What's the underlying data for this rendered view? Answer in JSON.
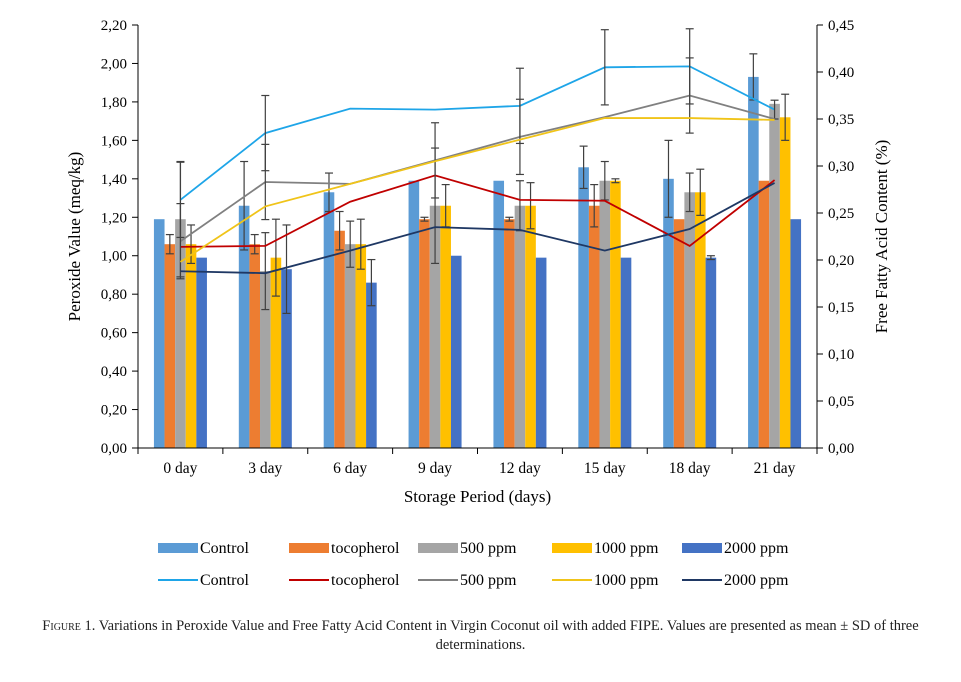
{
  "caption": {
    "label": "Figure 1.",
    "text": "Variations in Peroxide Value and Free Fatty Acid Content in Virgin Coconut oil with added FIPE. Values are presented as mean ± SD of three determinations."
  },
  "chart_data": {
    "type": "bar",
    "categories": [
      "0 day",
      "3 day",
      "6 day",
      "9 day",
      "12 day",
      "15 day",
      "18 day",
      "21 day"
    ],
    "xlabel": "Storage Period (days)",
    "ylabel": "Peroxide Value (meq/kg)",
    "y2label": "Free Fatty Acid Content (%)",
    "ylim": [
      0,
      2.2
    ],
    "y2lim": [
      0,
      0.45
    ],
    "yticks": [
      "0,00",
      "0,20",
      "0,40",
      "0,60",
      "0,80",
      "1,00",
      "1,20",
      "1,40",
      "1,60",
      "1,80",
      "2,00",
      "2,20"
    ],
    "y2ticks": [
      "0,00",
      "0,05",
      "0,10",
      "0,15",
      "0,20",
      "0,25",
      "0,30",
      "0,35",
      "0,40",
      "0,45"
    ],
    "grid": false,
    "legend_position": "bottom",
    "bar_series": [
      {
        "name": "Control",
        "color": "#5b9bd5",
        "values": [
          1.19,
          1.26,
          1.33,
          1.39,
          1.39,
          1.46,
          1.4,
          1.93
        ],
        "errors": [
          0.0,
          0.23,
          0.1,
          0.0,
          0.0,
          0.11,
          0.2,
          0.12
        ]
      },
      {
        "name": "tocopherol",
        "color": "#ed7d31",
        "values": [
          1.06,
          1.06,
          1.13,
          1.19,
          1.19,
          1.26,
          1.19,
          1.39
        ],
        "errors": [
          0.05,
          0.05,
          0.1,
          0.01,
          0.01,
          0.11,
          0.0,
          0.0
        ]
      },
      {
        "name": "500 ppm",
        "color": "#a5a5a5",
        "values": [
          1.19,
          0.92,
          1.06,
          1.26,
          1.26,
          1.39,
          1.33,
          1.79
        ],
        "errors": [
          0.3,
          0.2,
          0.12,
          0.3,
          0.13,
          0.1,
          0.1,
          0.0
        ]
      },
      {
        "name": "1000 ppm",
        "color": "#ffc000",
        "values": [
          1.06,
          0.99,
          1.06,
          1.26,
          1.26,
          1.39,
          1.33,
          1.72
        ],
        "errors": [
          0.1,
          0.2,
          0.13,
          0.11,
          0.12,
          0.01,
          0.12,
          0.12
        ]
      },
      {
        "name": "2000 ppm",
        "color": "#4472c4",
        "values": [
          0.99,
          0.93,
          0.86,
          1.0,
          0.99,
          0.99,
          0.99,
          1.19
        ],
        "errors": [
          0.0,
          0.23,
          0.12,
          0.0,
          0.0,
          0.0,
          0.01,
          0.0
        ]
      }
    ],
    "line_series": [
      {
        "name": "Control",
        "color": "#1ea5e8",
        "values": [
          0.264,
          0.335,
          0.361,
          0.36,
          0.364,
          0.405,
          0.406,
          0.36
        ],
        "errors": [
          0.04,
          0.04,
          0.0,
          0.0,
          0.04,
          0.04,
          0.04,
          0.01
        ]
      },
      {
        "name": "tocopherol",
        "color": "#c00000",
        "values": [
          0.214,
          0.215,
          0.262,
          0.29,
          0.264,
          0.263,
          0.215,
          0.285
        ],
        "errors": [
          0.0,
          0.0,
          0.0,
          0.0,
          0.0,
          0.0,
          0.0,
          0.0
        ]
      },
      {
        "name": "500 ppm",
        "color": "#808080",
        "values": [
          0.22,
          0.283,
          0.281,
          0.306,
          0.331,
          0.352,
          0.375,
          0.35
        ],
        "errors": [
          0.04,
          0.04,
          0.0,
          0.04,
          0.04,
          0.0,
          0.04,
          0.0
        ]
      },
      {
        "name": "1000 ppm",
        "color": "#f0c419",
        "values": [
          0.198,
          0.257,
          0.281,
          0.305,
          0.328,
          0.351,
          0.351,
          0.349
        ],
        "errors": [
          0.0,
          0.0,
          0.0,
          0.0,
          0.0,
          0.0,
          0.0,
          0.0
        ]
      },
      {
        "name": "2000 ppm",
        "color": "#1f3864",
        "values": [
          0.188,
          0.186,
          0.21,
          0.235,
          0.232,
          0.21,
          0.233,
          0.282
        ],
        "errors": [
          0.0,
          0.0,
          0.0,
          0.0,
          0.0,
          0.0,
          0.0,
          0.0
        ]
      }
    ]
  }
}
